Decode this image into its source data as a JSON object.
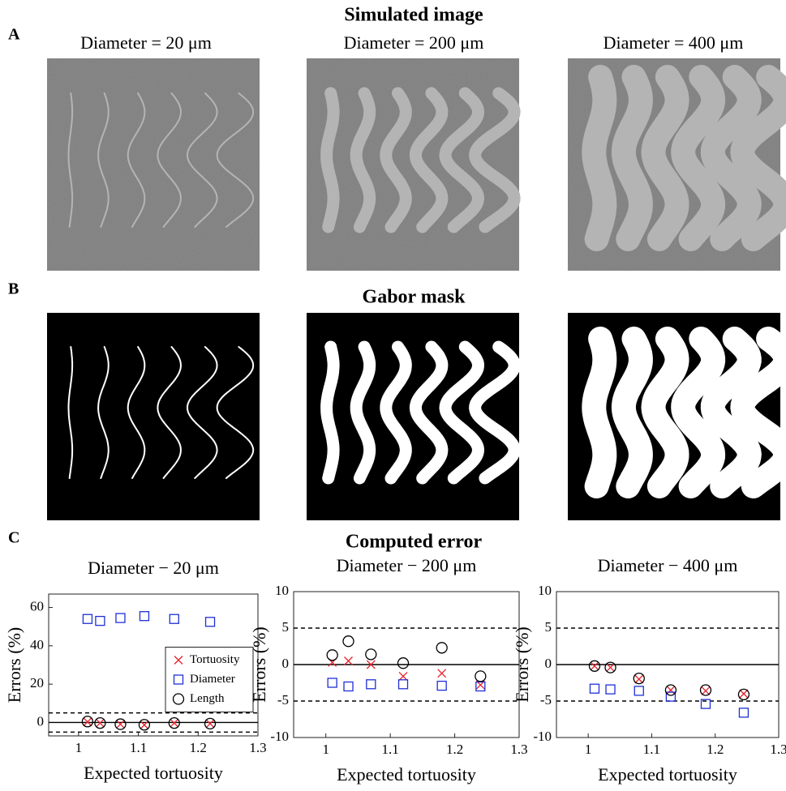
{
  "figure": {
    "panel_a_label": "A",
    "panel_a_title": "Simulated image",
    "panel_a_subtitles": [
      "Diameter = 20 μm",
      "Diameter = 200 μm",
      "Diameter = 400 μm"
    ],
    "panel_b_label": "B",
    "panel_b_title": "Gabor mask",
    "panel_c_label": "C",
    "panel_c_title": "Computed error"
  },
  "chart_data": [
    {
      "type": "scatter",
      "title": "Diameter − 20 μm",
      "x_label": "Expected tortuosity",
      "y_label": "Errors (%)",
      "x": [
        1.015,
        1.036,
        1.07,
        1.11,
        1.16,
        1.22
      ],
      "series": [
        {
          "name": "Tortuosity",
          "color": "#e8202a",
          "marker": "x",
          "values": [
            0.3,
            -0.3,
            -0.9,
            -1.3,
            -0.3,
            -0.6
          ]
        },
        {
          "name": "Diameter",
          "color": "#1f2fd6",
          "marker": "square",
          "values": [
            54,
            53,
            54.5,
            55.5,
            54,
            52.5
          ]
        },
        {
          "name": "Length",
          "color": "#000000",
          "marker": "circle",
          "values": [
            0.5,
            -0.3,
            -0.9,
            -1.2,
            -0.3,
            -0.6
          ]
        }
      ],
      "xlim": [
        0.95,
        1.3
      ],
      "xticks": [
        1,
        1.1,
        1.2,
        1.3
      ],
      "ylim": [
        -7,
        67
      ],
      "yticks": [
        0,
        20,
        40,
        60
      ],
      "reference_lines": [
        {
          "value": 0,
          "style": "solid"
        },
        {
          "value": 5,
          "style": "dashed"
        },
        {
          "value": -5,
          "style": "dashed"
        }
      ],
      "legend": "right"
    },
    {
      "type": "scatter",
      "title": "Diameter − 200 μm",
      "x_label": "Expected tortuosity",
      "y_label": "Errors (%)",
      "x": [
        1.01,
        1.035,
        1.07,
        1.12,
        1.18,
        1.24
      ],
      "series": [
        {
          "name": "Tortuosity",
          "color": "#e8202a",
          "marker": "x",
          "values": [
            0.3,
            0.5,
            0,
            -1.6,
            -1.2,
            -2.8
          ]
        },
        {
          "name": "Diameter",
          "color": "#1f2fd6",
          "marker": "square",
          "values": [
            -2.5,
            -3,
            -2.7,
            -2.7,
            -2.9,
            -3
          ]
        },
        {
          "name": "Length",
          "color": "#000000",
          "marker": "circle",
          "values": [
            1.3,
            3.2,
            1.4,
            0.2,
            2.3,
            -1.6
          ]
        }
      ],
      "xlim": [
        0.95,
        1.3
      ],
      "xticks": [
        1,
        1.1,
        1.2,
        1.3
      ],
      "ylim": [
        -10,
        10
      ],
      "yticks": [
        -10,
        -5,
        0,
        5,
        10
      ],
      "reference_lines": [
        {
          "value": 0,
          "style": "solid"
        },
        {
          "value": 5,
          "style": "dashed"
        },
        {
          "value": -5,
          "style": "dashed"
        }
      ]
    },
    {
      "type": "scatter",
      "title": "Diameter − 400 μm",
      "x_label": "Expected tortuosity",
      "y_label": "Errors (%)",
      "x": [
        1.01,
        1.035,
        1.08,
        1.13,
        1.185,
        1.245
      ],
      "series": [
        {
          "name": "Tortuosity",
          "color": "#e8202a",
          "marker": "x",
          "values": [
            -0.2,
            -0.4,
            -2,
            -3.5,
            -3.6,
            -4
          ]
        },
        {
          "name": "Diameter",
          "color": "#1f2fd6",
          "marker": "square",
          "values": [
            -3.3,
            -3.4,
            -3.6,
            -4.4,
            -5.4,
            -6.6
          ]
        },
        {
          "name": "Length",
          "color": "#000000",
          "marker": "circle",
          "values": [
            -0.2,
            -0.4,
            -1.9,
            -3.5,
            -3.5,
            -4.1
          ]
        }
      ],
      "xlim": [
        0.95,
        1.3
      ],
      "xticks": [
        1,
        1.1,
        1.2,
        1.3
      ],
      "ylim": [
        -10,
        10
      ],
      "yticks": [
        -10,
        -5,
        0,
        5,
        10
      ],
      "reference_lines": [
        {
          "value": 0,
          "style": "solid"
        },
        {
          "value": 5,
          "style": "dashed"
        },
        {
          "value": -5,
          "style": "dashed"
        }
      ]
    }
  ]
}
